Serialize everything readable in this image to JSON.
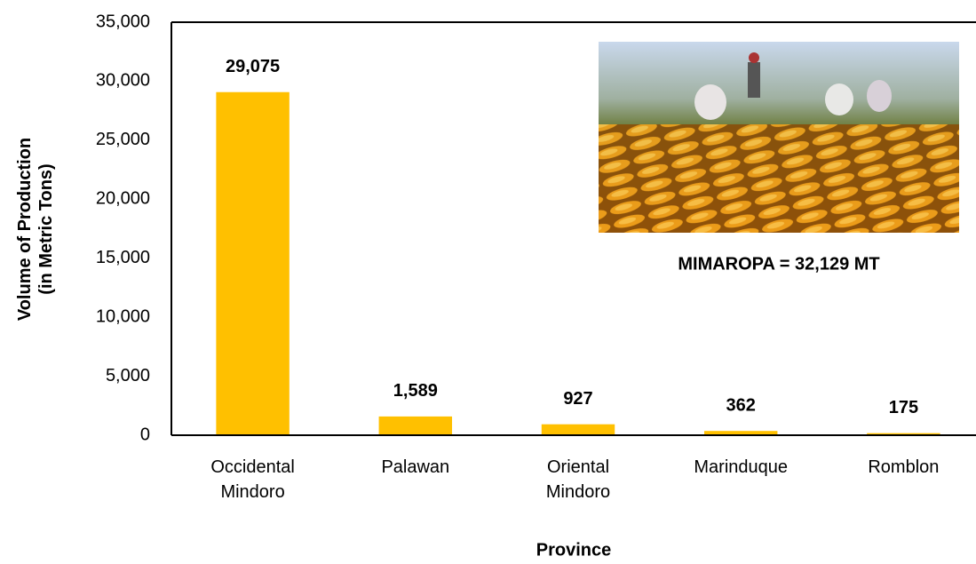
{
  "chart_data": {
    "type": "bar",
    "categories": [
      "Occidental Mindoro",
      "Palawan",
      "Oriental Mindoro",
      "Marinduque",
      "Romblon"
    ],
    "values": [
      29075,
      1589,
      927,
      362,
      175
    ],
    "value_labels": [
      "29,075",
      "1,589",
      "927",
      "362",
      "175"
    ],
    "color": "#ffc000",
    "x_label": "Province",
    "y_label": [
      "Volume of Production",
      "(in Metric Tons)"
    ],
    "annotation": "MIMAROPA = 32,129 MT",
    "ylim": [
      0,
      35000
    ],
    "yticks": [
      0,
      {
        "value": 5000,
        "label": "5,000"
      },
      {
        "value": 10000,
        "label": "10,000"
      },
      {
        "value": 15000,
        "label": "15,000"
      },
      {
        "value": 20000,
        "label": "20,000"
      },
      {
        "value": 25000,
        "label": "25,000"
      },
      {
        "value": 30000,
        "label": "30,000"
      },
      {
        "value": 35000,
        "label": "35,000"
      }
    ],
    "grid": false
  }
}
